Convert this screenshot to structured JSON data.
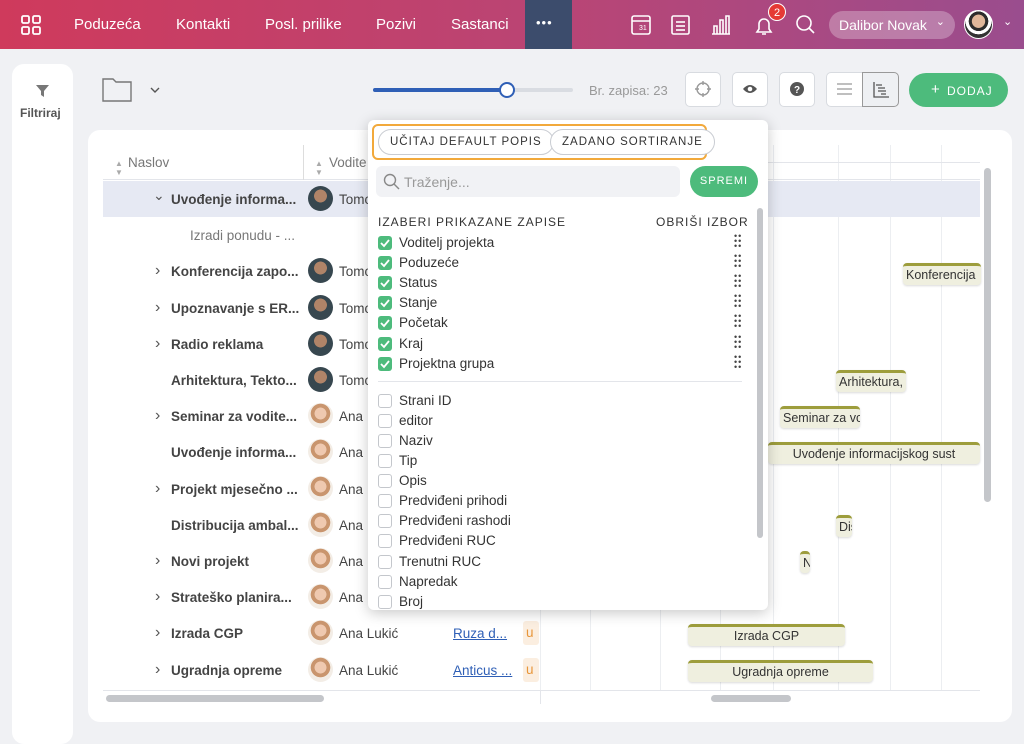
{
  "nav": {
    "items": [
      "Poduzeća",
      "Kontakti",
      "Posl. prilike",
      "Pozivi",
      "Sastanci"
    ],
    "more": "•••",
    "badge": "2",
    "user": "Dalibor Novak"
  },
  "sidebar": {
    "filter": "Filtriraj"
  },
  "toolbar": {
    "record_count": "Br. zapisa: 23",
    "add": "DODAJ"
  },
  "table": {
    "columns": [
      "Naslov",
      "Vodite"
    ],
    "rows": [
      {
        "title": "Uvođenje informa...",
        "manager": "Tomo"
      },
      {
        "title": "Izradi ponudu - ..."
      },
      {
        "title": "Konferencija zapo...",
        "manager": "Tomo"
      },
      {
        "title": "Upoznavanje s ER...",
        "manager": "Tomo"
      },
      {
        "title": "Radio reklama",
        "manager": "Tomo"
      },
      {
        "title": "Arhitektura, Tekto...",
        "manager": "Tomo"
      },
      {
        "title": "Seminar za vodite...",
        "manager": "Ana"
      },
      {
        "title": "Uvođenje informa...",
        "manager": "Ana"
      },
      {
        "title": "Projekt mjesečno ...",
        "manager": "Ana"
      },
      {
        "title": "Distribucija ambal...",
        "manager": "Ana"
      },
      {
        "title": "Novi projekt",
        "manager": "Ana"
      },
      {
        "title": "Strateško planira...",
        "manager": "Ana"
      },
      {
        "title": "Izrada CGP",
        "manager": "Ana Lukić",
        "company": "Ruza d...",
        "status": "u"
      },
      {
        "title": "Ugradnja opreme",
        "manager": "Ana Lukić",
        "company": "Anticus ...",
        "status": "u"
      }
    ]
  },
  "gantt": {
    "bars": [
      "Konferencija",
      "Arhitektura,",
      "Seminar za vc",
      "Uvođenje informacijskog sust",
      "Dis",
      "N",
      "Izrada CGP",
      "Ugradnja opreme"
    ]
  },
  "column_picker": {
    "load_default": "UČITAJ DEFAULT POPIS",
    "default_sort": "ZADANO SORTIRANJE",
    "search_placeholder": "Traženje...",
    "save": "SPREMI",
    "heading": "IZABERI PRIKAZANE ZAPISE",
    "clear": "OBRIŠI IZBOR",
    "items": [
      {
        "label": "Voditelj projekta",
        "checked": true
      },
      {
        "label": "Poduzeće",
        "checked": true
      },
      {
        "label": "Status",
        "checked": true
      },
      {
        "label": "Stanje",
        "checked": true
      },
      {
        "label": "Početak",
        "checked": true
      },
      {
        "label": "Kraj",
        "checked": true
      },
      {
        "label": "Projektna grupa",
        "checked": true
      },
      {
        "label": "Strani ID",
        "checked": false
      },
      {
        "label": "editor",
        "checked": false
      },
      {
        "label": "Naziv",
        "checked": false
      },
      {
        "label": "Tip",
        "checked": false
      },
      {
        "label": "Opis",
        "checked": false
      },
      {
        "label": "Predviđeni prihodi",
        "checked": false
      },
      {
        "label": "Predviđeni rashodi",
        "checked": false
      },
      {
        "label": "Predviđeni RUC",
        "checked": false
      },
      {
        "label": "Trenutni RUC",
        "checked": false
      },
      {
        "label": "Napredak",
        "checked": false
      },
      {
        "label": "Broj",
        "checked": false
      }
    ]
  }
}
